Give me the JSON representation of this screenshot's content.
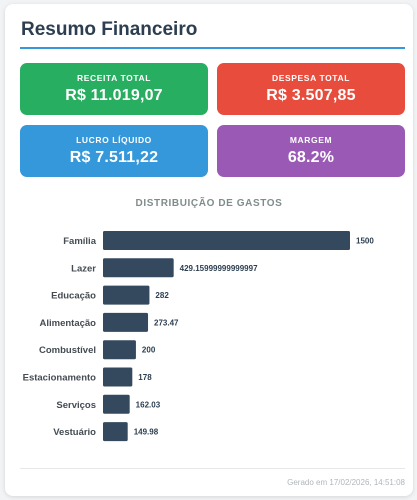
{
  "page": {
    "title": "Resumo Financeiro"
  },
  "summary": [
    {
      "label": "RECEITA TOTAL",
      "value": "R$ 11.019,07",
      "color": "#27ae60"
    },
    {
      "label": "DESPESA TOTAL",
      "value": "R$ 3.507,85",
      "color": "#e74c3c"
    },
    {
      "label": "LUCRO LÍQUIDO",
      "value": "R$ 7.511,22",
      "color": "#3498db"
    },
    {
      "label": "MARGEM",
      "value": "68.2%",
      "color": "#9b59b6"
    }
  ],
  "chart": {
    "title": "DISTRIBUIÇÃO DE GASTOS"
  },
  "chart_data": {
    "type": "bar",
    "orientation": "horizontal",
    "categories": [
      "Família",
      "Lazer",
      "Educação",
      "Alimentação",
      "Combustível",
      "Estacionamento",
      "Serviços",
      "Vestuário"
    ],
    "values": [
      1500,
      429.15999999999997,
      282,
      273.47,
      200,
      178,
      162.03,
      149.98
    ],
    "value_labels": [
      "1500",
      "429.15999999999997",
      "282",
      "273.47",
      "200",
      "178",
      "162.03",
      "149.98"
    ],
    "bar_color": "#34495e",
    "xlim": [
      0,
      1500
    ],
    "grid": false,
    "legend": "none"
  },
  "footer": {
    "generated": "Gerado em 17/02/2026, 14:51:08"
  }
}
